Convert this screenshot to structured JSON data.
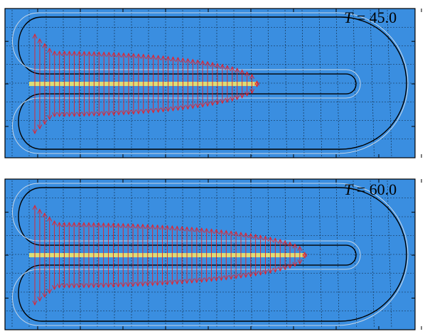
{
  "panels": [
    {
      "label_var": "T",
      "label_eq": " = 45.0",
      "time": 45.0,
      "front_extent": 0.62
    },
    {
      "label_var": "T",
      "label_eq": " = 60.0",
      "time": 60.0,
      "front_extent": 0.75
    }
  ],
  "colors": {
    "background": "#3a8ee0",
    "frame": "#000000",
    "grid": "#000000",
    "arrows": "#e8202a",
    "fracture": "#d9dd7a",
    "boundary_inner": "#c6d6e6",
    "boundary_outer": "#000000"
  }
}
